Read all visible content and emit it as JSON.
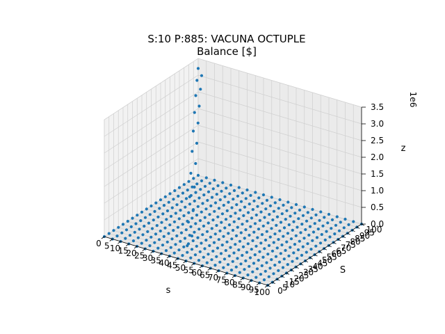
{
  "chart_data": {
    "type": "scatter3d",
    "title_line1": "S:10 P:885: VACUNA OCTUPLE",
    "title_line2": "Balance [$]",
    "xlabel": "s",
    "ylabel": "S",
    "zlabel": "z",
    "z_offset_label": "1e6",
    "xlim": [
      0,
      100
    ],
    "ylim": [
      0,
      100
    ],
    "zlim": [
      0,
      3500000
    ],
    "x_ticks": [
      "0",
      "5",
      "10",
      "15",
      "20",
      "25",
      "30",
      "35",
      "40",
      "45",
      "50",
      "55",
      "60",
      "65",
      "70",
      "75",
      "80",
      "85",
      "90",
      "95",
      "100"
    ],
    "y_ticks": [
      "0",
      "5",
      "10",
      "15",
      "20",
      "25",
      "30",
      "35",
      "40",
      "45",
      "50",
      "55",
      "60",
      "65",
      "70",
      "75",
      "80",
      "85",
      "90",
      "95",
      "100"
    ],
    "z_ticks": [
      "0.0",
      "0.5",
      "1.0",
      "1.5",
      "2.0",
      "2.5",
      "3.0",
      "3.5"
    ],
    "grid": true,
    "marker_color": "#1f77b4",
    "x_values": [
      0,
      5,
      10,
      15,
      20,
      25,
      30,
      35,
      40,
      45,
      50,
      55,
      60,
      65,
      70,
      75,
      80,
      85,
      90,
      95,
      100
    ],
    "y_values": [
      0,
      5,
      10,
      15,
      20,
      25,
      30,
      35,
      40,
      45,
      50,
      55,
      60,
      65,
      70,
      75,
      80,
      85,
      90,
      95,
      100
    ],
    "rising_series": [
      {
        "x": 0,
        "y": 100,
        "z": 3200000
      },
      {
        "x": 5,
        "y": 90,
        "z": 3100000
      },
      {
        "x": 5,
        "y": 95,
        "z": 3150000
      },
      {
        "x": 10,
        "y": 80,
        "z": 2900000
      },
      {
        "x": 10,
        "y": 85,
        "z": 3000000
      },
      {
        "x": 15,
        "y": 70,
        "z": 2650000
      },
      {
        "x": 15,
        "y": 75,
        "z": 2750000
      },
      {
        "x": 20,
        "y": 60,
        "z": 2350000
      },
      {
        "x": 20,
        "y": 65,
        "z": 2500000
      },
      {
        "x": 25,
        "y": 50,
        "z": 2000000
      },
      {
        "x": 25,
        "y": 55,
        "z": 2150000
      },
      {
        "x": 30,
        "y": 40,
        "z": 1600000
      },
      {
        "x": 30,
        "y": 45,
        "z": 1800000
      },
      {
        "x": 35,
        "y": 30,
        "z": 1150000
      },
      {
        "x": 35,
        "y": 35,
        "z": 1350000
      },
      {
        "x": 40,
        "y": 20,
        "z": 650000
      },
      {
        "x": 40,
        "y": 25,
        "z": 900000
      },
      {
        "x": 45,
        "y": 10,
        "z": 200000
      },
      {
        "x": 45,
        "y": 15,
        "z": 400000
      }
    ]
  }
}
